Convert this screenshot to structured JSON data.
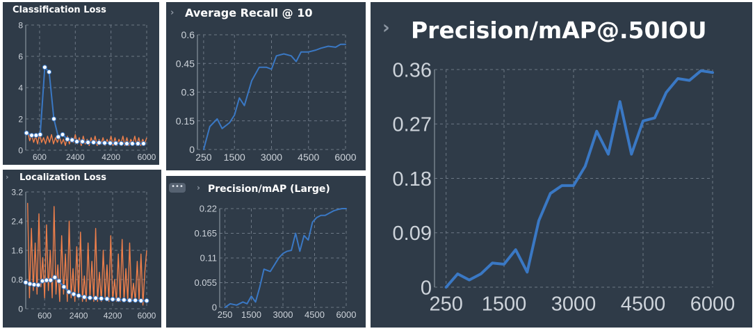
{
  "panels": {
    "classification": {
      "title": "Classification Loss"
    },
    "recall": {
      "title": "Average Recall @ 10"
    },
    "localization": {
      "title": "Localization Loss"
    },
    "map_large": {
      "title": "Precision/mAP (Large)"
    },
    "map50": {
      "title": "Precision/mAP@.50IOU"
    }
  },
  "icons": {
    "chevron": "chevron-right-icon",
    "more": "more-options-icon"
  },
  "colors": {
    "panel_bg": "#2f3b48",
    "grid": "#6d7885",
    "line": "#3a78c4",
    "raw": "#ee7f4b",
    "tick": "#cdd3da"
  },
  "chart_data": [
    {
      "id": "classification",
      "type": "line",
      "title": "Classification Loss",
      "x_ticks": [
        600,
        2400,
        4200,
        6000
      ],
      "x_tick_labels": [
        "600",
        "2400",
        "4200",
        "6000"
      ],
      "y_ticks": [
        0,
        2,
        4,
        6,
        8
      ],
      "y_tick_labels": [
        "0",
        "2",
        "4",
        "6",
        "8"
      ],
      "xlim": [
        -100,
        6000
      ],
      "ylim": [
        0,
        8
      ],
      "grid": true,
      "series": [
        {
          "role": "raw",
          "x": [
            0,
            100,
            200,
            300,
            400,
            500,
            600,
            700,
            800,
            900,
            1000,
            1100,
            1200,
            1300,
            1400,
            1500,
            1600,
            1700,
            1800,
            1900,
            2000,
            2100,
            2200,
            2300,
            2400,
            2500,
            2600,
            2700,
            2800,
            2900,
            3000,
            3100,
            3200,
            3300,
            3400,
            3500,
            3600,
            3700,
            3800,
            3900,
            4000,
            4100,
            4200,
            4300,
            4400,
            4500,
            4600,
            4700,
            4800,
            4900,
            5000,
            5100,
            5200,
            5300,
            5400,
            5500,
            5600,
            5700,
            5800,
            5900,
            6000
          ],
          "y": [
            1.2,
            0.6,
            1.0,
            0.5,
            0.9,
            0.4,
            1.1,
            0.5,
            0.8,
            0.4,
            0.9,
            0.5,
            1.0,
            0.4,
            0.8,
            0.5,
            0.9,
            0.4,
            0.7,
            0.3,
            0.9,
            0.4,
            0.8,
            0.5,
            1.0,
            0.4,
            0.8,
            0.3,
            0.9,
            0.4,
            0.7,
            0.3,
            0.8,
            0.4,
            0.9,
            0.3,
            0.7,
            0.4,
            0.8,
            0.3,
            0.7,
            0.4,
            0.9,
            0.3,
            0.8,
            0.3,
            0.7,
            0.4,
            0.9,
            0.3,
            0.8,
            0.3,
            0.7,
            0.4,
            0.9,
            0.3,
            0.8,
            0.3,
            0.7,
            0.4,
            0.8
          ]
        },
        {
          "role": "smoothed",
          "x": [
            -60,
            200,
            420,
            630,
            860,
            1080,
            1320,
            1540,
            1760,
            2000,
            2240,
            2480,
            2760,
            3040,
            3320,
            3600,
            3880,
            4160,
            4440,
            4720,
            5000,
            5280,
            5560,
            5840
          ],
          "y": [
            1.1,
            0.95,
            0.95,
            1.0,
            5.3,
            5.0,
            2.0,
            0.85,
            1.0,
            0.7,
            0.65,
            0.55,
            0.55,
            0.5,
            0.5,
            0.48,
            0.46,
            0.45,
            0.44,
            0.43,
            0.42,
            0.42,
            0.42,
            0.42
          ]
        }
      ]
    },
    {
      "id": "recall",
      "type": "line",
      "title": "Average Recall @ 10",
      "x_ticks": [
        250,
        1500,
        3000,
        4500,
        6000
      ],
      "x_tick_labels": [
        "250",
        "1500",
        "3000",
        "4500",
        "6000"
      ],
      "y_ticks": [
        0,
        0.15,
        0.3,
        0.45,
        0.6
      ],
      "y_tick_labels": [
        "0",
        "0.15",
        "0.3",
        "0.45",
        "0.6"
      ],
      "xlim": [
        0,
        6000
      ],
      "ylim": [
        0,
        0.6
      ],
      "grid": true,
      "series": [
        {
          "x": [
            250,
            500,
            800,
            1000,
            1300,
            1500,
            1700,
            1900,
            2200,
            2500,
            2800,
            3000,
            3200,
            3500,
            3800,
            4000,
            4200,
            4500,
            4800,
            5000,
            5300,
            5600,
            5800,
            6000
          ],
          "y": [
            0,
            0.12,
            0.16,
            0.11,
            0.14,
            0.18,
            0.27,
            0.23,
            0.36,
            0.43,
            0.43,
            0.42,
            0.49,
            0.5,
            0.49,
            0.46,
            0.51,
            0.51,
            0.52,
            0.53,
            0.54,
            0.535,
            0.55,
            0.55
          ]
        }
      ]
    },
    {
      "id": "localization",
      "type": "line",
      "title": "Localization Loss",
      "x_ticks": [
        600,
        2400,
        4200,
        6000
      ],
      "x_tick_labels": [
        "600",
        "2400",
        "4200",
        "6000"
      ],
      "y_ticks": [
        0,
        0.8,
        1.6,
        2.4,
        3.2
      ],
      "y_tick_labels": [
        "0",
        "0.8",
        "1.6",
        "2.4",
        "3.2"
      ],
      "xlim": [
        -400,
        6000
      ],
      "ylim": [
        0,
        3.2
      ],
      "grid": true,
      "series": [
        {
          "role": "raw",
          "x": [
            -300,
            -200,
            -100,
            0,
            100,
            200,
            300,
            400,
            500,
            600,
            700,
            800,
            900,
            1000,
            1100,
            1200,
            1300,
            1400,
            1500,
            1600,
            1700,
            1800,
            1900,
            2000,
            2100,
            2200,
            2300,
            2400,
            2500,
            2600,
            2700,
            2800,
            2900,
            3000,
            3100,
            3200,
            3300,
            3400,
            3500,
            3600,
            3700,
            3800,
            3900,
            4000,
            4100,
            4200,
            4300,
            4400,
            4500,
            4600,
            4700,
            4800,
            4900,
            5000,
            5100,
            5200,
            5300,
            5400,
            5500,
            5600,
            5700,
            5800,
            5900,
            6000
          ],
          "y": [
            2.9,
            0.3,
            2.2,
            0.5,
            1.8,
            0.4,
            2.6,
            0.6,
            1.4,
            0.3,
            2.3,
            0.5,
            1.6,
            0.3,
            2.8,
            0.4,
            1.2,
            0.2,
            2.0,
            0.4,
            1.5,
            0.2,
            2.4,
            0.3,
            1.1,
            0.2,
            1.7,
            0.3,
            2.1,
            0.2,
            0.9,
            0.2,
            1.8,
            0.3,
            1.3,
            0.2,
            2.2,
            0.2,
            1.0,
            0.2,
            1.6,
            0.3,
            1.2,
            0.2,
            2.0,
            0.2,
            0.8,
            0.2,
            1.5,
            0.2,
            1.9,
            0.2,
            1.1,
            0.2,
            1.8,
            0.2,
            0.7,
            0.2,
            1.3,
            0.2,
            1.5,
            0.1,
            1.0,
            1.6
          ]
        },
        {
          "role": "smoothed",
          "x": [
            -400,
            -180,
            40,
            260,
            480,
            700,
            920,
            1140,
            1360,
            1620,
            1880,
            2140,
            2400,
            2700,
            3000,
            3300,
            3600,
            3900,
            4200,
            4500,
            4800,
            5100,
            5400,
            5700,
            6000
          ],
          "y": [
            0.72,
            0.68,
            0.66,
            0.65,
            0.76,
            0.78,
            0.78,
            0.86,
            0.76,
            0.6,
            0.46,
            0.4,
            0.36,
            0.32,
            0.3,
            0.29,
            0.28,
            0.27,
            0.26,
            0.25,
            0.24,
            0.23,
            0.23,
            0.22,
            0.22
          ]
        }
      ]
    },
    {
      "id": "map_large",
      "type": "line",
      "title": "Precision/mAP (Large)",
      "x_ticks": [
        250,
        1500,
        3000,
        4500,
        6000
      ],
      "x_tick_labels": [
        "250",
        "1500",
        "3000",
        "4500",
        "6000"
      ],
      "y_ticks": [
        0,
        0.055,
        0.11,
        0.165,
        0.22
      ],
      "y_tick_labels": [
        "0",
        "0.055",
        "0.11",
        "0.165",
        "0.22"
      ],
      "xlim": [
        0,
        6000
      ],
      "ylim": [
        0,
        0.22
      ],
      "grid": true,
      "series": [
        {
          "x": [
            250,
            500,
            800,
            1100,
            1300,
            1500,
            1700,
            1900,
            2100,
            2400,
            2600,
            2800,
            3000,
            3200,
            3400,
            3600,
            3800,
            4000,
            4200,
            4400,
            4600,
            4800,
            5000,
            5200,
            5400,
            5600,
            5800,
            6000
          ],
          "y": [
            0,
            0.008,
            0.005,
            0.012,
            0.008,
            0.025,
            0.012,
            0.045,
            0.085,
            0.08,
            0.095,
            0.11,
            0.12,
            0.125,
            0.127,
            0.165,
            0.125,
            0.16,
            0.15,
            0.19,
            0.2,
            0.205,
            0.205,
            0.21,
            0.215,
            0.218,
            0.22,
            0.22
          ]
        }
      ]
    },
    {
      "id": "map50",
      "type": "line",
      "title": "Precision/mAP@.50IOU",
      "x_ticks": [
        250,
        1500,
        3000,
        4500,
        6000
      ],
      "x_tick_labels": [
        "250",
        "1500",
        "3000",
        "4500",
        "6000"
      ],
      "y_ticks": [
        0,
        0.09,
        0.18,
        0.27,
        0.36
      ],
      "y_tick_labels": [
        "0",
        "0.09",
        "0.18",
        "0.27",
        "0.36"
      ],
      "xlim": [
        0,
        6000
      ],
      "ylim": [
        0,
        0.36
      ],
      "grid": true,
      "series": [
        {
          "x": [
            250,
            500,
            750,
            1000,
            1250,
            1500,
            1750,
            2000,
            2250,
            2500,
            2750,
            3000,
            3250,
            3500,
            3750,
            4000,
            4250,
            4500,
            4750,
            5000,
            5250,
            5500,
            5750,
            6000
          ],
          "y": [
            0,
            0.022,
            0.012,
            0.022,
            0.04,
            0.038,
            0.062,
            0.025,
            0.11,
            0.155,
            0.168,
            0.168,
            0.2,
            0.258,
            0.22,
            0.307,
            0.22,
            0.275,
            0.28,
            0.322,
            0.345,
            0.342,
            0.358,
            0.355
          ]
        }
      ]
    }
  ]
}
